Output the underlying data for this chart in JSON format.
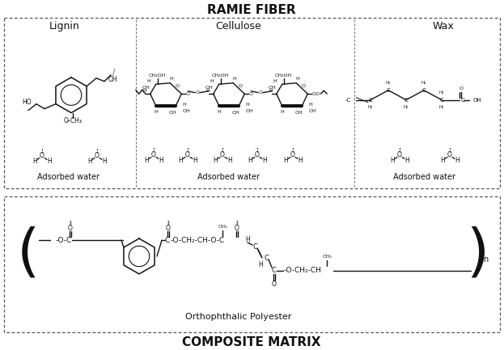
{
  "title_top": "RAMIE FIBER",
  "title_bottom": "COMPOSITE MATRIX",
  "subtitle_polyester": "Orthophthalic Polyester",
  "label_lignin": "Lignin",
  "label_cellulose": "Cellulose",
  "label_wax": "Wax",
  "label_adsorbed": "Adsorbed water",
  "bg_color": "#ffffff",
  "fig_width": 6.23,
  "fig_height": 4.33,
  "dpi": 100
}
